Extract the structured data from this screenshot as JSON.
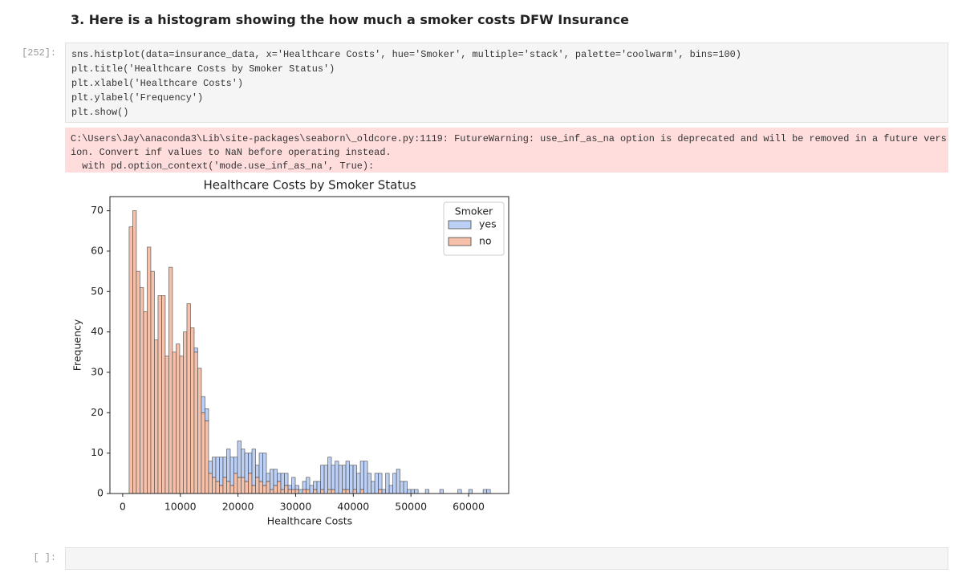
{
  "heading": "3. Here is a histogram showing the how much a smoker costs DFW Insurance",
  "code_cell": {
    "prompt": "[252]:",
    "lines": [
      "sns.histplot(data=insurance_data, x='Healthcare Costs', hue='Smoker', multiple='stack', palette='coolwarm', bins=100)",
      "plt.title('Healthcare Costs by Smoker Status')",
      "plt.xlabel('Healthcare Costs')",
      "plt.ylabel('Frequency')",
      "plt.show()"
    ]
  },
  "stderr": {
    "lines": [
      "C:\\Users\\Jay\\anaconda3\\Lib\\site-packages\\seaborn\\_oldcore.py:1119: FutureWarning: use_inf_as_na option is deprecated and will be removed in a future vers",
      "ion. Convert inf values to NaN before operating instead.",
      "  with pd.option_context('mode.use_inf_as_na', True):"
    ]
  },
  "chart_data": {
    "type": "histogram",
    "stacked": true,
    "title": "Healthcare Costs by Smoker Status",
    "x_label": "Healthcare Costs",
    "y_label": "Frequency",
    "legend_title": "Smoker",
    "legend_position": "upper right",
    "bins": [
      1122,
      1748.5,
      2375,
      3001.5,
      3628,
      4254.5,
      4881,
      5507.5,
      6134,
      6760.5,
      7387,
      8013.5,
      8640,
      9266.5,
      9893,
      10519.5,
      11146,
      11772.5,
      12399,
      13025.5,
      13652,
      14278.5,
      14905,
      15531.5,
      16158,
      16784.5,
      17411,
      18037.5,
      18664,
      19290.5,
      19917,
      20543.5,
      21170,
      21796.5,
      22423,
      23049.5,
      23676,
      24302.5,
      24929,
      25555.5,
      26182,
      26808.5,
      27435,
      28061.5,
      28688,
      29314.5,
      29941,
      30567.5,
      31194,
      31820.5,
      32447,
      33073.5,
      33700,
      34326.5,
      34953,
      35579.5,
      36206,
      36832.5,
      37459,
      38085.5,
      38712,
      39338.5,
      39965,
      40591.5,
      41218,
      41844.5,
      42471,
      43097.5,
      43724,
      44350.5,
      44977,
      45603.5,
      46230,
      46856.5,
      47483,
      48109.5,
      48736,
      49362.5,
      49989,
      50615.5,
      51242,
      51868.5,
      52495,
      53121.5,
      53748,
      54374.5,
      55001,
      55627.5,
      56254,
      56880.5,
      57507,
      58133.5,
      58760,
      59386.5,
      60013,
      60639.5,
      61266,
      61892.5,
      62519,
      63145.5,
      63772
    ],
    "series": [
      {
        "name": "yes",
        "color": "#bccff4",
        "values": [
          0,
          0,
          0,
          0,
          0,
          0,
          0,
          0,
          0,
          0,
          0,
          0,
          0,
          0,
          0,
          0,
          0,
          0,
          1,
          0,
          4,
          3,
          3,
          5,
          6,
          7,
          5,
          8,
          7,
          4,
          9,
          7,
          7,
          5,
          9,
          3,
          7,
          8,
          2,
          5,
          4,
          2,
          4,
          3,
          1,
          3,
          1,
          1,
          2,
          3,
          2,
          2,
          3,
          6,
          7,
          8,
          6,
          8,
          7,
          6,
          7,
          7,
          6,
          5,
          7,
          8,
          5,
          3,
          5,
          4,
          1,
          5,
          2,
          5,
          6,
          3,
          3,
          1,
          1,
          1,
          0,
          0,
          1,
          0,
          0,
          0,
          1,
          0,
          0,
          0,
          0,
          1,
          0,
          0,
          1,
          0,
          0,
          0,
          1,
          1
        ]
      },
      {
        "name": "no",
        "color": "#f6c1aa",
        "values": [
          66,
          70,
          55,
          51,
          45,
          61,
          55,
          38,
          49,
          49,
          34,
          56,
          35,
          37,
          34,
          40,
          47,
          41,
          35,
          31,
          20,
          18,
          5,
          4,
          3,
          2,
          4,
          3,
          2,
          5,
          4,
          4,
          3,
          5,
          2,
          4,
          3,
          2,
          3,
          1,
          2,
          3,
          1,
          2,
          1,
          1,
          1,
          0,
          1,
          1,
          0,
          1,
          0,
          1,
          0,
          1,
          1,
          0,
          0,
          1,
          1,
          0,
          1,
          0,
          1,
          0,
          0,
          0,
          0,
          1,
          0,
          0,
          0,
          0,
          0,
          0,
          0,
          0,
          0,
          0,
          0,
          0,
          0,
          0,
          0,
          0,
          0,
          0,
          0,
          0,
          0,
          0,
          0,
          0,
          0,
          0,
          0,
          0,
          0,
          0
        ]
      }
    ],
    "xlim": [
      -2210,
      66953
    ],
    "xticks": [
      0,
      10000,
      20000,
      30000,
      40000,
      50000,
      60000
    ],
    "ylim": [
      0,
      73.5
    ],
    "yticks": [
      0,
      10,
      20,
      30,
      40,
      50,
      60,
      70
    ]
  },
  "empty_cell": {
    "prompt": "[ ]:"
  }
}
